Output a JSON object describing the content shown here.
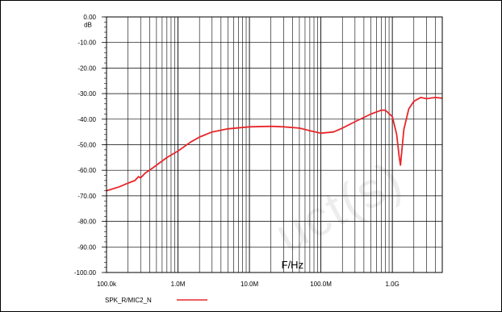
{
  "watermark": "uct(s)",
  "chart_data": {
    "type": "line",
    "title": "",
    "xlabel": "F/Hz",
    "ylabel": "",
    "yunit": "dB",
    "xscale": "log",
    "xlim": [
      100000,
      5000000000
    ],
    "ylim": [
      -100,
      0
    ],
    "grid": true,
    "legend_position": "bottom-left",
    "x_tick_values": [
      100000,
      1000000,
      10000000,
      100000000,
      1000000000
    ],
    "x_tick_labels": [
      "100.0k",
      "1.0M",
      "10.0M",
      "100.0M",
      "1.0G"
    ],
    "y_tick_values": [
      0,
      -10,
      -20,
      -30,
      -40,
      -50,
      -60,
      -70,
      -80,
      -90,
      -100
    ],
    "y_tick_labels": [
      "0.00",
      "-10.00",
      "-20.00",
      "-30.00",
      "-40.00",
      "-50.00",
      "-60.00",
      "-70.00",
      "-80.00",
      "-90.00",
      "-100.00"
    ],
    "series": [
      {
        "name": "SPK_R/MIC2_N",
        "color": "#e8262a",
        "x": [
          100000,
          150000,
          200000,
          250000,
          280000,
          300000,
          350000,
          400000,
          500000,
          700000,
          1000000,
          1500000,
          2000000,
          3000000,
          5000000,
          10000000,
          20000000,
          30000000,
          50000000,
          70000000,
          100000000,
          150000000,
          200000000,
          300000000,
          500000000,
          700000000,
          800000000,
          1000000000,
          1150000000,
          1250000000,
          1300000000,
          1350000000,
          1450000000,
          1700000000,
          2000000000,
          2500000000,
          3000000000,
          4000000000,
          5000000000
        ],
        "y": [
          -68,
          -66.5,
          -65,
          -64,
          -62.5,
          -63,
          -61,
          -60,
          -58,
          -55,
          -52.5,
          -49,
          -47,
          -45,
          -43.8,
          -43,
          -42.8,
          -43,
          -43.5,
          -44.5,
          -45.5,
          -45,
          -43.5,
          -41,
          -38,
          -36.5,
          -36.5,
          -39,
          -46,
          -55,
          -58,
          -53,
          -44,
          -36,
          -33,
          -31.5,
          -32,
          -31.5,
          -31.8
        ]
      }
    ]
  }
}
